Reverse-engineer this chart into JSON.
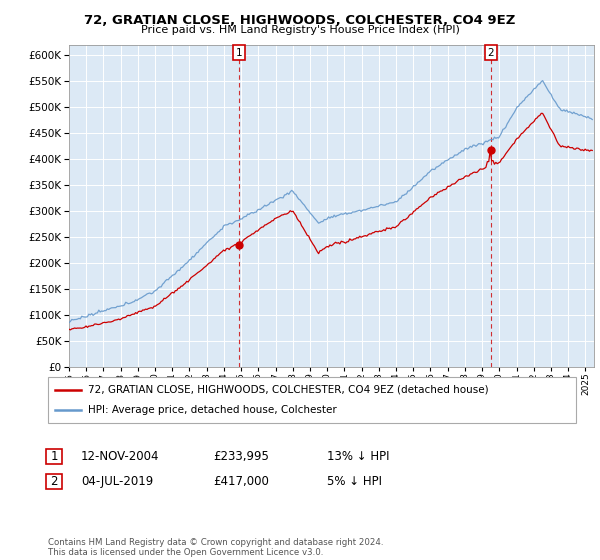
{
  "title": "72, GRATIAN CLOSE, HIGHWOODS, COLCHESTER, CO4 9EZ",
  "subtitle": "Price paid vs. HM Land Registry's House Price Index (HPI)",
  "ylim": [
    0,
    620000
  ],
  "yticks": [
    0,
    50000,
    100000,
    150000,
    200000,
    250000,
    300000,
    350000,
    400000,
    450000,
    500000,
    550000,
    600000
  ],
  "xlim_start": 1995.0,
  "xlim_end": 2025.5,
  "red_color": "#cc0000",
  "blue_color": "#6699cc",
  "background_color": "#dce9f5",
  "purchase1": {
    "date_float": 2004.87,
    "price": 233995,
    "label": "1"
  },
  "purchase2": {
    "date_float": 2019.5,
    "price": 417000,
    "label": "2"
  },
  "legend_red": "72, GRATIAN CLOSE, HIGHWOODS, COLCHESTER, CO4 9EZ (detached house)",
  "legend_blue": "HPI: Average price, detached house, Colchester",
  "annotation1_date": "12-NOV-2004",
  "annotation1_price": "£233,995",
  "annotation1_hpi": "13% ↓ HPI",
  "annotation2_date": "04-JUL-2019",
  "annotation2_price": "£417,000",
  "annotation2_hpi": "5% ↓ HPI",
  "footnote": "Contains HM Land Registry data © Crown copyright and database right 2024.\nThis data is licensed under the Open Government Licence v3.0."
}
